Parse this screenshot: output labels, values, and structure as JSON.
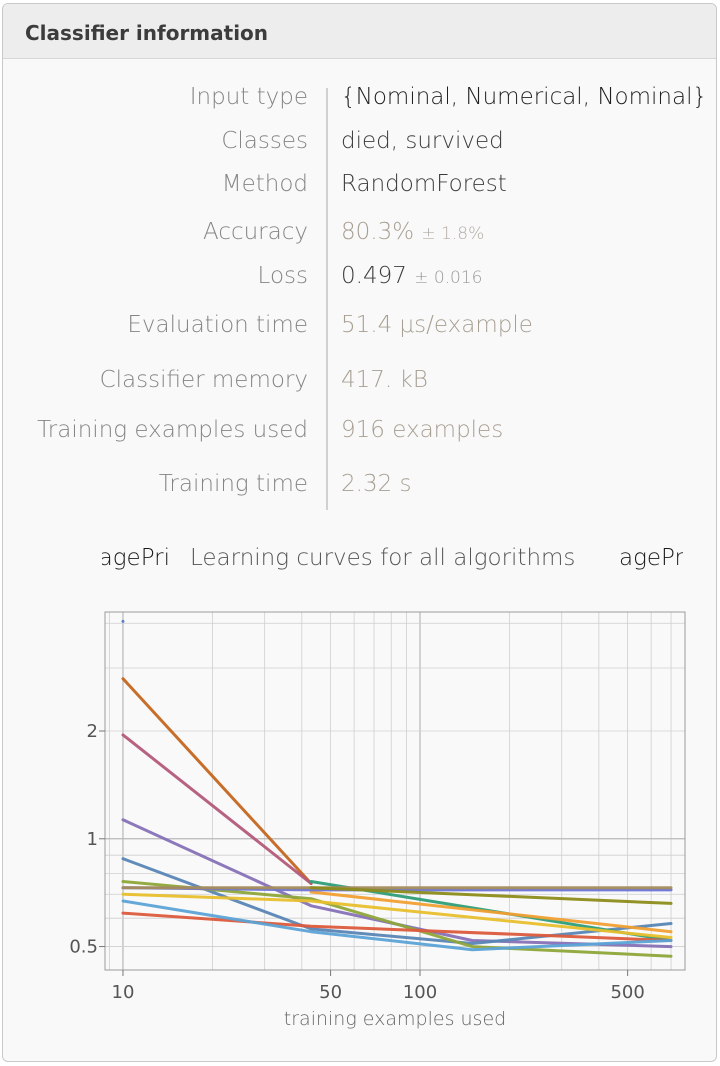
{
  "header": {
    "title": "Classifier information"
  },
  "info": [
    {
      "label": "Input type",
      "value": "{Nominal, Numerical, Nominal}"
    },
    {
      "label": "Classes",
      "value": "died, survived"
    },
    {
      "label": "Method",
      "value": "RandomForest"
    },
    {
      "label": "Accuracy",
      "value": "80.3%",
      "pm": "± 1.8%"
    },
    {
      "label": "Loss",
      "value": "0.497",
      "pm": "± 0.016"
    },
    {
      "label": "Evaluation time",
      "value": "51.4 μs/example"
    },
    {
      "label": "Classifier memory",
      "value": "417. kB"
    },
    {
      "label": "Training examples used",
      "value": "916 examples"
    },
    {
      "label": "Training time",
      "value": "2.32 s"
    }
  ],
  "chart_tabs": {
    "left": "agePri",
    "right": "agePr"
  },
  "colors": {
    "accent_tan": "#a89f93",
    "grid": "#cfcfcf"
  },
  "chart_data": {
    "type": "line",
    "title": "Learning curves for all algorithms",
    "xlabel": "training examples used",
    "ylabel": "",
    "x_scale": "log",
    "y_scale": "log",
    "xlim": [
      8.7,
      780
    ],
    "ylim": [
      0.43,
      4.3
    ],
    "x_ticks": [
      10,
      50,
      100,
      500
    ],
    "y_ticks": [
      0.5,
      1,
      2
    ],
    "grid": true,
    "series": [
      {
        "color": "#c4661f",
        "x": [
          10,
          43
        ],
        "y": [
          2.8,
          0.75
        ]
      },
      {
        "color": "#b35a7a",
        "x": [
          10,
          43
        ],
        "y": [
          1.95,
          0.75
        ]
      },
      {
        "color": "#8671b6",
        "x": [
          10,
          43,
          150,
          700
        ],
        "y": [
          1.13,
          0.65,
          0.52,
          0.5
        ]
      },
      {
        "color": "#5886b6",
        "x": [
          10,
          43,
          150,
          700
        ],
        "y": [
          0.88,
          0.56,
          0.51,
          0.58
        ]
      },
      {
        "color": "#8ea63a",
        "x": [
          10,
          43,
          150,
          700
        ],
        "y": [
          0.76,
          0.68,
          0.5,
          0.47
        ]
      },
      {
        "color": "#2e9e78",
        "x": [
          43,
          700
        ],
        "y": [
          0.76,
          0.52
        ]
      },
      {
        "color": "#e8bf2c",
        "x": [
          10,
          43,
          700
        ],
        "y": [
          0.7,
          0.67,
          0.53
        ]
      },
      {
        "color": "#f0a031",
        "x": [
          43,
          700
        ],
        "y": [
          0.71,
          0.55
        ]
      },
      {
        "color": "#6a74d6",
        "x": [
          10,
          43,
          700
        ],
        "y": [
          0.73,
          0.72,
          0.72
        ]
      },
      {
        "color": "#a48c5c",
        "x": [
          10,
          700
        ],
        "y": [
          0.73,
          0.73
        ]
      },
      {
        "color": "#8c8c1a",
        "x": [
          43,
          700
        ],
        "y": [
          0.73,
          0.66
        ]
      },
      {
        "color": "#dc5a3c",
        "x": [
          10,
          43,
          700
        ],
        "y": [
          0.62,
          0.57,
          0.52
        ]
      },
      {
        "color": "#5ba3d6",
        "x": [
          10,
          43,
          150,
          700
        ],
        "y": [
          0.67,
          0.55,
          0.49,
          0.52
        ]
      }
    ]
  }
}
